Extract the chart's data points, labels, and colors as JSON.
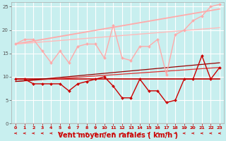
{
  "background_color": "#c8efef",
  "grid_color": "#b0dede",
  "xlabel": "Vent moyen/en rafales ( km/h )",
  "xlim": [
    -0.5,
    23.5
  ],
  "ylim": [
    0,
    26
  ],
  "yticks": [
    0,
    5,
    10,
    15,
    20,
    25
  ],
  "xticks": [
    0,
    1,
    2,
    3,
    4,
    5,
    6,
    7,
    8,
    9,
    10,
    11,
    12,
    13,
    14,
    15,
    16,
    17,
    18,
    19,
    20,
    21,
    22,
    23
  ],
  "lines": [
    {
      "x": [
        0,
        1,
        2,
        3,
        4,
        5,
        6,
        7,
        8,
        9,
        10,
        11,
        12,
        13,
        14,
        15,
        16,
        17,
        18,
        19,
        20,
        21,
        22,
        23
      ],
      "y": [
        9.5,
        9.5,
        8.5,
        8.5,
        8.5,
        8.5,
        7,
        8.5,
        9,
        9.5,
        10,
        8,
        5.5,
        5.5,
        9.5,
        7,
        7,
        4.5,
        5,
        9.5,
        9.5,
        14.5,
        9.5,
        12
      ],
      "color": "#cc0000",
      "lw": 1.0,
      "marker": "D",
      "ms": 2.0,
      "zorder": 5
    },
    {
      "x": [
        0,
        23
      ],
      "y": [
        9.5,
        9.5
      ],
      "color": "#cc0000",
      "lw": 1.2,
      "marker": null,
      "ms": 0,
      "zorder": 3
    },
    {
      "x": [
        0,
        23
      ],
      "y": [
        9.0,
        12.0
      ],
      "color": "#dd3333",
      "lw": 0.9,
      "marker": null,
      "ms": 0,
      "zorder": 3
    },
    {
      "x": [
        0,
        23
      ],
      "y": [
        9.0,
        13.0
      ],
      "color": "#990000",
      "lw": 0.9,
      "marker": null,
      "ms": 0,
      "zorder": 3
    },
    {
      "x": [
        0,
        1,
        2,
        3,
        4,
        5,
        6,
        7,
        8,
        9,
        10,
        11,
        12,
        13,
        14,
        15,
        16,
        17,
        18,
        19,
        20,
        21,
        22,
        23
      ],
      "y": [
        17,
        18,
        18,
        15.5,
        13,
        15.5,
        13,
        16.5,
        17,
        17,
        14,
        21,
        14,
        13.5,
        16.5,
        16.5,
        18,
        10.5,
        19,
        20,
        22,
        23,
        25,
        25.5
      ],
      "color": "#ffaaaa",
      "lw": 1.0,
      "marker": "D",
      "ms": 2.0,
      "zorder": 5
    },
    {
      "x": [
        0,
        23
      ],
      "y": [
        17.0,
        24.5
      ],
      "color": "#ffaaaa",
      "lw": 1.3,
      "marker": null,
      "ms": 0,
      "zorder": 3
    },
    {
      "x": [
        0,
        23
      ],
      "y": [
        17.0,
        20.5
      ],
      "color": "#ffbbbb",
      "lw": 1.0,
      "marker": null,
      "ms": 0,
      "zorder": 3
    }
  ],
  "arrow_color": "#cc0000",
  "xlabel_color": "#cc0000",
  "xlabel_fontsize": 7,
  "xtick_fontsize": 5,
  "ytick_fontsize": 5
}
